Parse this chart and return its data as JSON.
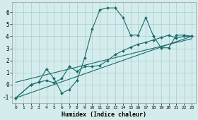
{
  "xlabel": "Humidex (Indice chaleur)",
  "xlim": [
    -0.5,
    23.5
  ],
  "ylim": [
    -1.5,
    6.8
  ],
  "yticks": [
    -1,
    0,
    1,
    2,
    3,
    4,
    5,
    6
  ],
  "xticks": [
    0,
    1,
    2,
    3,
    4,
    5,
    6,
    7,
    8,
    9,
    10,
    11,
    12,
    13,
    14,
    15,
    16,
    17,
    18,
    19,
    20,
    21,
    22,
    23
  ],
  "bg_color": "#d4ecec",
  "grid_color": "#aacece",
  "line_color": "#1a6b6b",
  "line1_x": [
    0,
    2,
    3,
    4,
    5,
    6,
    7,
    8,
    9,
    10,
    11,
    12,
    13,
    14,
    15,
    16,
    17,
    18,
    19,
    20,
    21,
    22,
    23
  ],
  "line1_y": [
    -1.1,
    0.0,
    0.2,
    1.3,
    0.5,
    -0.7,
    -0.4,
    0.35,
    2.2,
    4.6,
    6.2,
    6.35,
    6.35,
    5.55,
    4.1,
    4.1,
    5.55,
    4.0,
    3.05,
    3.05,
    4.1,
    4.1,
    4.0
  ],
  "line2_x": [
    0,
    2,
    3,
    4,
    5,
    6,
    7,
    8,
    9,
    10,
    11,
    12,
    13,
    14,
    15,
    16,
    17,
    18,
    19,
    20,
    21,
    22,
    23
  ],
  "line2_y": [
    -1.1,
    0.0,
    0.2,
    0.35,
    0.15,
    0.5,
    1.5,
    1.1,
    1.5,
    1.5,
    1.6,
    2.0,
    2.5,
    2.8,
    3.1,
    3.35,
    3.5,
    3.7,
    3.9,
    4.1,
    3.85,
    4.0,
    4.0
  ],
  "line3_x": [
    0,
    23
  ],
  "line3_y": [
    -1.1,
    4.0
  ],
  "line4_x": [
    0,
    23
  ],
  "line4_y": [
    0.2,
    3.8
  ]
}
